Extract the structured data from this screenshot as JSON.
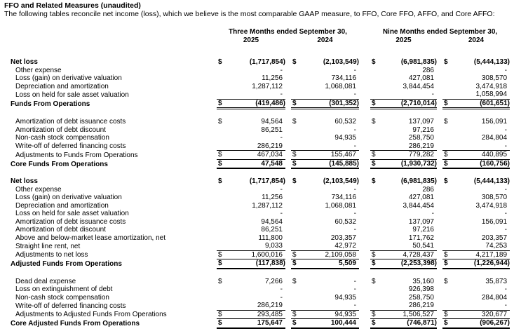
{
  "page": {
    "title": "FFO and Related Measures (unaudited)",
    "subtitle": "The following tables reconcile net income (loss), which we believe is the most comparable GAAP measure, to FFO, Core FFO, AFFO, and Core AFFO:"
  },
  "columns": {
    "groups": [
      {
        "label": "Three Months ended September 30,",
        "years": [
          "2025",
          "2024"
        ]
      },
      {
        "label": "Nine Months ended September 30,",
        "years": [
          "2025",
          "2024"
        ]
      }
    ]
  },
  "sections": [
    {
      "rows": [
        {
          "label": "Net loss",
          "bold": true,
          "dollar": true,
          "values": [
            "(1,717,854)",
            "(2,103,549)",
            "(6,981,835)",
            "(5,444,133)"
          ]
        },
        {
          "label": "Other expense",
          "indent": true,
          "values": [
            "-",
            "-",
            "286",
            "-"
          ]
        },
        {
          "label": "Loss (gain) on derivative valuation",
          "indent": true,
          "values": [
            "11,256",
            "734,116",
            "427,081",
            "308,570"
          ]
        },
        {
          "label": "Depreciation and amortization",
          "indent": true,
          "values": [
            "1,287,112",
            "1,068,081",
            "3,844,454",
            "3,474,918"
          ]
        },
        {
          "label": "Loss on held for sale asset valuation",
          "indent": true,
          "underline": "single",
          "values": [
            "-",
            "-",
            "-",
            "1,058,994"
          ]
        },
        {
          "label": "Funds From Operations",
          "bold": true,
          "dollar": true,
          "underline": "double",
          "values": [
            "(419,486)",
            "(301,352)",
            "(2,710,014)",
            "(601,651)"
          ]
        }
      ]
    },
    {
      "rows": [
        {
          "label": "Amortization of debt issuance costs",
          "indent": true,
          "dollar": true,
          "values": [
            "94,564",
            "60,532",
            "137,097",
            "156,091"
          ]
        },
        {
          "label": "Amortization of debt discount",
          "indent": true,
          "values": [
            "86,251",
            "-",
            "97,216",
            "-"
          ]
        },
        {
          "label": "Non-cash stock compensation",
          "indent": true,
          "values": [
            "-",
            "94,935",
            "258,750",
            "284,804"
          ]
        },
        {
          "label": "Write-off of deferred financing costs",
          "indent": true,
          "underline": "single",
          "values": [
            "286,219",
            "-",
            "286,219",
            "-"
          ]
        },
        {
          "label": "Adjustments to Funds From Operations",
          "indent": true,
          "dollar": true,
          "underline": "single",
          "values": [
            "467,034",
            "155,467",
            "779,282",
            "440,895"
          ]
        },
        {
          "label": "Core Funds From Operations",
          "bold": true,
          "dollar": true,
          "underline": "thick",
          "values": [
            "47,548",
            "(145,885)",
            "(1,930,732)",
            "(160,756)"
          ]
        }
      ]
    },
    {
      "rows": [
        {
          "label": "Net loss",
          "bold": true,
          "dollar": true,
          "values": [
            "(1,717,854)",
            "(2,103,549)",
            "(6,981,835)",
            "(5,444,133)"
          ]
        },
        {
          "label": "Other expense",
          "indent": true,
          "values": [
            "-",
            "-",
            "286",
            "-"
          ]
        },
        {
          "label": "Loss (gain) on derivative valuation",
          "indent": true,
          "values": [
            "11,256",
            "734,116",
            "427,081",
            "308,570"
          ]
        },
        {
          "label": "Depreciation and amortization",
          "indent": true,
          "values": [
            "1,287,112",
            "1,068,081",
            "3,844,454",
            "3,474,918"
          ]
        },
        {
          "label": "Loss on held for sale asset valuation",
          "indent": true,
          "values": [
            "-",
            "-",
            "-",
            "-"
          ]
        },
        {
          "label": "Amortization of debt issuance costs",
          "indent": true,
          "values": [
            "94,564",
            "60,532",
            "137,097",
            "156,091"
          ]
        },
        {
          "label": "Amortization of debt discount",
          "indent": true,
          "values": [
            "86,251",
            "-",
            "97,216",
            "-"
          ]
        },
        {
          "label": "Above and below-market lease amortization, net",
          "indent": true,
          "values": [
            "111,800",
            "203,357",
            "171,762",
            "203,357"
          ]
        },
        {
          "label": "Straight line rent, net",
          "indent": true,
          "underline": "single",
          "values": [
            "9,033",
            "42,972",
            "50,541",
            "74,253"
          ]
        },
        {
          "label": "Adjustments to net loss",
          "indent": true,
          "dollar": true,
          "underline": "single",
          "values": [
            "1,600,016",
            "2,109,058",
            "4,728,437",
            "4,217,189"
          ]
        },
        {
          "label": "Adjusted Funds From Operations",
          "bold": true,
          "dollar": true,
          "underline": "thick",
          "values": [
            "(117,838)",
            "5,509",
            "(2,253,398)",
            "(1,226,944)"
          ]
        }
      ]
    },
    {
      "rows": [
        {
          "label": "Dead deal expense",
          "indent": true,
          "dollar": true,
          "values": [
            "7,266",
            "-",
            "35,160",
            "35,873"
          ]
        },
        {
          "label": "Loss on extinguishment of debt",
          "indent": true,
          "values": [
            "-",
            "-",
            "926,398",
            "-"
          ]
        },
        {
          "label": "Non-cash stock compensation",
          "indent": true,
          "values": [
            "-",
            "94,935",
            "258,750",
            "284,804"
          ]
        },
        {
          "label": "Write-off of deferred financing costs",
          "indent": true,
          "underline": "single",
          "values": [
            "286,219",
            "-",
            "286,219",
            "-"
          ]
        },
        {
          "label": "Adjustments to Adjusted Funds From Operations",
          "indent": true,
          "dollar": true,
          "underline": "single",
          "values": [
            "293,485",
            "94,935",
            "1,506,527",
            "320,677"
          ]
        },
        {
          "label": "Core Adjusted Funds From Operations",
          "bold": true,
          "dollar": true,
          "underline": "thick",
          "values": [
            "175,647",
            "100,444",
            "(746,871)",
            "(906,267)"
          ]
        }
      ]
    }
  ]
}
